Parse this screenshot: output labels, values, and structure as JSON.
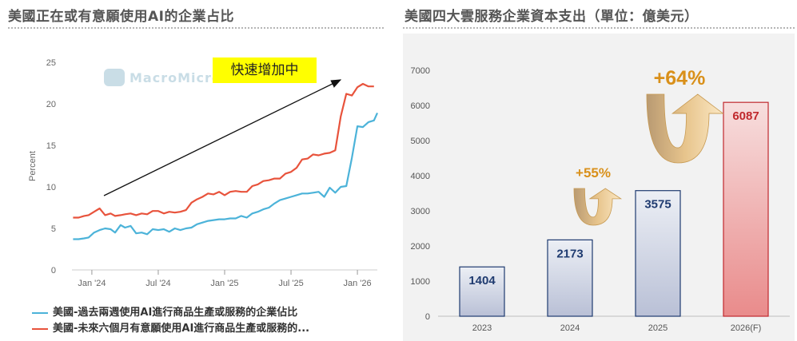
{
  "panels": {
    "left_title": "美國正在或有意願使用AI的企業占比",
    "right_title": "美國四大雲服務企業資本支出（單位：億美元）"
  },
  "watermark": "MacroMicro",
  "callout": "快速增加中",
  "colors": {
    "series1": "#4cb3d9",
    "series2": "#e8533c",
    "bar_normal_top": "#eceff5",
    "bar_normal_bottom": "#b9c0d6",
    "bar_normal_border": "#1f3b70",
    "bar_forecast_top": "#f7dede",
    "bar_forecast_bottom": "#e98b8b",
    "bar_forecast_border": "#c0282d",
    "growth_label": "#d9901a"
  },
  "chart_data": [
    {
      "type": "line",
      "title": "美國正在或有意願使用AI的企業占比",
      "ylabel": "Percent",
      "ylim": [
        0,
        25
      ],
      "yticks": [
        "0",
        "5",
        "10",
        "15",
        "20",
        "25"
      ],
      "xticks": [
        "Jan '24",
        "Jul '24",
        "Jan '25",
        "Jul '25",
        "Jan '26"
      ],
      "xtick_positions": [
        0.0,
        6.0,
        12.0,
        18.0,
        24.0
      ],
      "xlim": [
        -1.8,
        25.8
      ],
      "series": [
        {
          "name": "美國-過去兩週使用AI進行商品生產或服務的企業佔比",
          "x": [
            -1.7,
            -1.2,
            -0.7,
            -0.3,
            0.2,
            0.7,
            1.2,
            1.7,
            2.1,
            2.6,
            3.0,
            3.5,
            4.0,
            4.5,
            5.0,
            5.5,
            6.0,
            6.5,
            7.0,
            7.5,
            8.0,
            8.5,
            9.0,
            9.5,
            10.0,
            10.5,
            11.0,
            11.5,
            12.0,
            12.5,
            13.0,
            13.5,
            14.0,
            14.5,
            15.0,
            15.5,
            16.0,
            16.5,
            17.0,
            17.5,
            18.0,
            18.5,
            19.0,
            19.5,
            20.0,
            20.5,
            21.0,
            21.5,
            22.0,
            22.5,
            23.0,
            23.5,
            24.0,
            24.5,
            25.0,
            25.5
          ],
          "values": [
            3.7,
            3.7,
            3.8,
            3.9,
            4.5,
            4.8,
            5.0,
            4.9,
            4.5,
            5.4,
            5.1,
            5.3,
            4.4,
            4.5,
            4.3,
            4.9,
            4.8,
            4.9,
            4.6,
            5.0,
            4.8,
            5.0,
            5.1,
            5.5,
            5.7,
            5.9,
            6.0,
            6.1,
            6.1,
            6.2,
            6.2,
            6.5,
            6.3,
            6.8,
            7.0,
            7.3,
            7.5,
            8.0,
            8.4,
            8.6,
            8.8,
            9.0,
            9.2,
            9.2,
            9.3,
            9.4,
            8.8,
            9.9,
            9.3,
            10.0,
            10.1,
            13.5,
            17.3,
            17.2,
            17.8,
            18.0
          ],
          "end_value": 18.9
        },
        {
          "name": "美國-未來六個月有意願使用AI進行商品生產或服務的...",
          "x": [
            -1.7,
            -1.2,
            -0.7,
            -0.3,
            0.2,
            0.7,
            1.2,
            1.7,
            2.1,
            2.6,
            3.0,
            3.5,
            4.0,
            4.5,
            5.0,
            5.5,
            6.0,
            6.5,
            7.0,
            7.5,
            8.0,
            8.5,
            9.0,
            9.5,
            10.0,
            10.5,
            11.0,
            11.5,
            12.0,
            12.5,
            13.0,
            13.5,
            14.0,
            14.5,
            15.0,
            15.5,
            16.0,
            16.5,
            17.0,
            17.5,
            18.0,
            18.5,
            19.0,
            19.5,
            20.0,
            20.5,
            21.0,
            21.5,
            22.0,
            22.5,
            23.0,
            23.5,
            24.0,
            24.5,
            25.0,
            25.5
          ],
          "values": [
            6.3,
            6.3,
            6.5,
            6.6,
            7.0,
            7.4,
            6.6,
            6.8,
            6.5,
            6.6,
            6.7,
            6.8,
            6.6,
            6.8,
            6.7,
            7.1,
            7.1,
            6.8,
            7.0,
            6.9,
            7.0,
            7.2,
            8.1,
            8.5,
            8.8,
            9.2,
            9.1,
            9.4,
            9.0,
            9.4,
            9.5,
            9.4,
            9.4,
            10.1,
            10.3,
            10.7,
            10.8,
            11.0,
            11.0,
            11.6,
            11.8,
            12.3,
            13.3,
            13.4,
            13.9,
            13.8,
            14.0,
            14.1,
            14.4,
            18.5,
            21.2,
            21.0,
            22.0,
            22.4,
            22.1,
            22.1
          ]
        }
      ],
      "legend": "bottom-left",
      "grid": false
    },
    {
      "type": "bar",
      "title": "美國四大雲服務企業資本支出（單位：億美元）",
      "categories": [
        "2023",
        "2024",
        "2025",
        "2026(F)"
      ],
      "values": [
        1404,
        2173,
        3575,
        6087
      ],
      "ylim": [
        0,
        7000
      ],
      "yticks": [
        "0",
        "1000",
        "2000",
        "3000",
        "4000",
        "5000",
        "6000",
        "7000"
      ],
      "forecast_index": 3,
      "annotations": [
        "+55%",
        "+64%"
      ],
      "grid": false
    }
  ]
}
